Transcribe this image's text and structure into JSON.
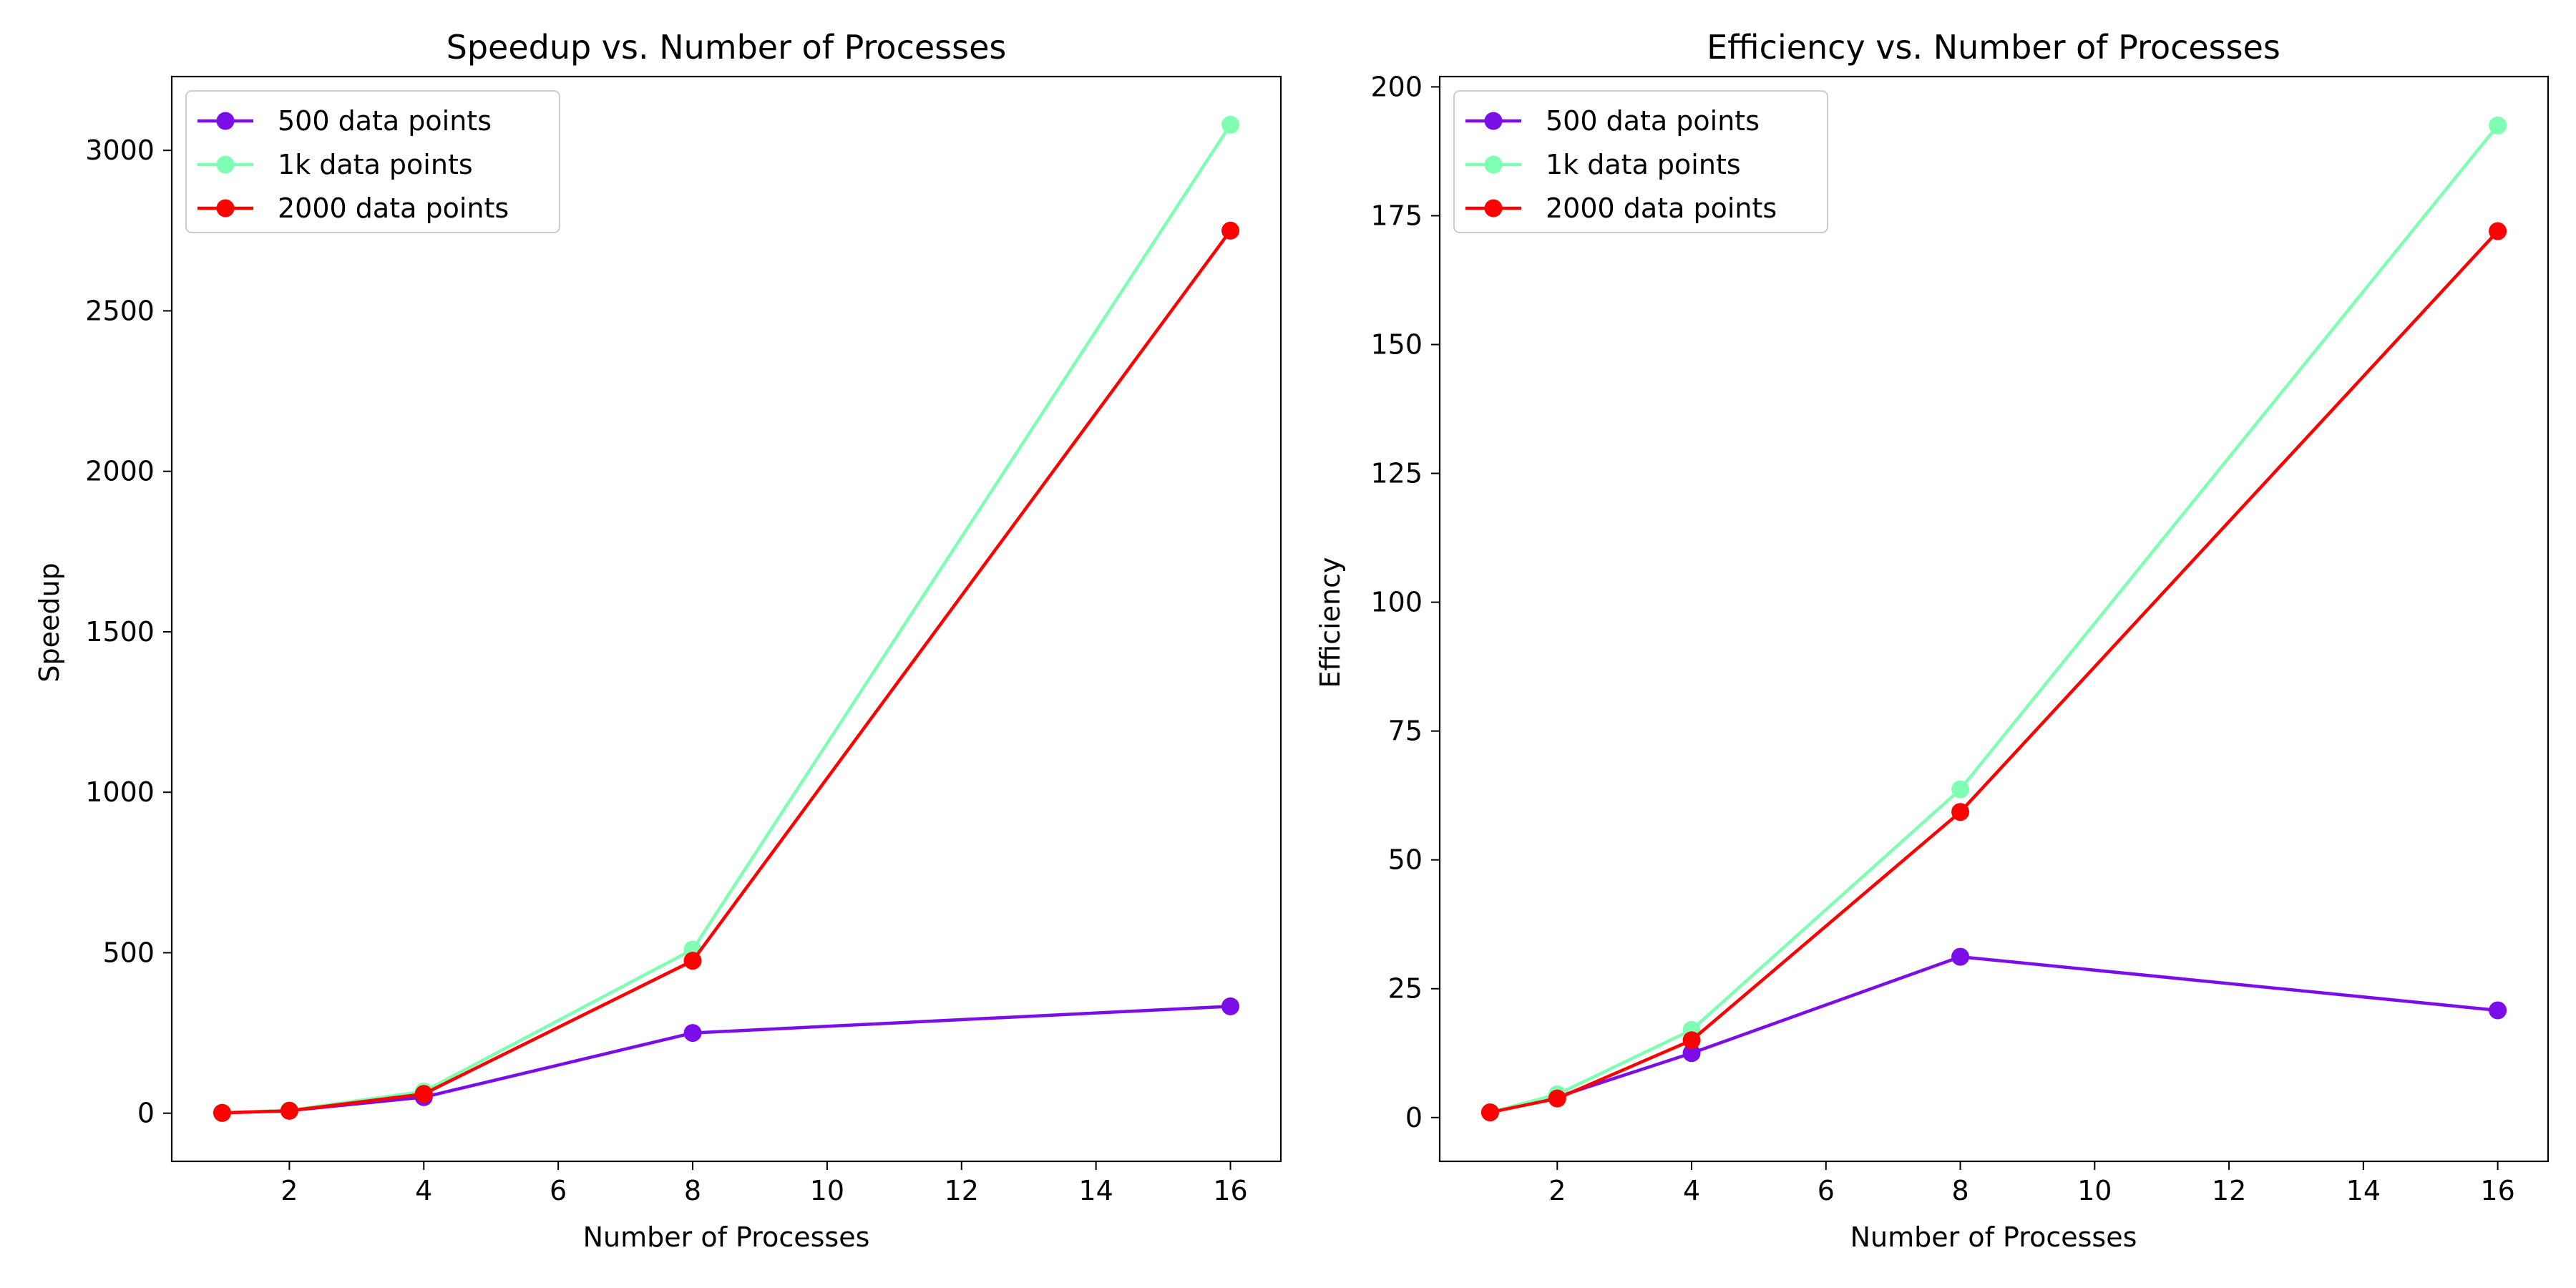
{
  "charts": [
    {
      "type": "line",
      "title": "Speedup vs. Number of Processes",
      "xlabel": "Number of Processes",
      "ylabel": "Speedup",
      "xlim": [
        0.25,
        16.75
      ],
      "ylim": [
        -150,
        3230
      ],
      "xticks": [
        2,
        4,
        6,
        8,
        10,
        12,
        14,
        16
      ],
      "yticks": [
        0,
        500,
        1000,
        1500,
        2000,
        2500,
        3000
      ],
      "x": [
        1,
        2,
        4,
        8,
        16
      ],
      "series": [
        {
          "name": "500 data points",
          "color": "#7b0de8",
          "values": [
            1,
            8,
            50,
            250,
            333
          ]
        },
        {
          "name": "1k data points",
          "color": "#7fffb4",
          "values": [
            1,
            9,
            68,
            510,
            3080
          ]
        },
        {
          "name": "2000 data points",
          "color": "#ff0000",
          "values": [
            1,
            7.5,
            60,
            475,
            2750
          ]
        }
      ],
      "legend": "top-left"
    },
    {
      "type": "line",
      "title": "Efficiency vs. Number of Processes",
      "xlabel": "Number of Processes",
      "ylabel": "Efficiency",
      "xlim": [
        0.25,
        16.75
      ],
      "ylim": [
        -8.5,
        202
      ],
      "xticks": [
        2,
        4,
        6,
        8,
        10,
        12,
        14,
        16
      ],
      "yticks": [
        0,
        25,
        50,
        75,
        100,
        125,
        150,
        175,
        200
      ],
      "x": [
        1,
        2,
        4,
        8,
        16
      ],
      "series": [
        {
          "name": "500 data points",
          "color": "#7b0de8",
          "values": [
            1,
            4,
            12.5,
            31.2,
            20.8
          ]
        },
        {
          "name": "1k data points",
          "color": "#7fffb4",
          "values": [
            1,
            4.5,
            17,
            63.7,
            192.5
          ]
        },
        {
          "name": "2000 data points",
          "color": "#ff0000",
          "values": [
            1,
            3.7,
            15,
            59.3,
            172
          ]
        }
      ],
      "legend": "top-left"
    }
  ]
}
